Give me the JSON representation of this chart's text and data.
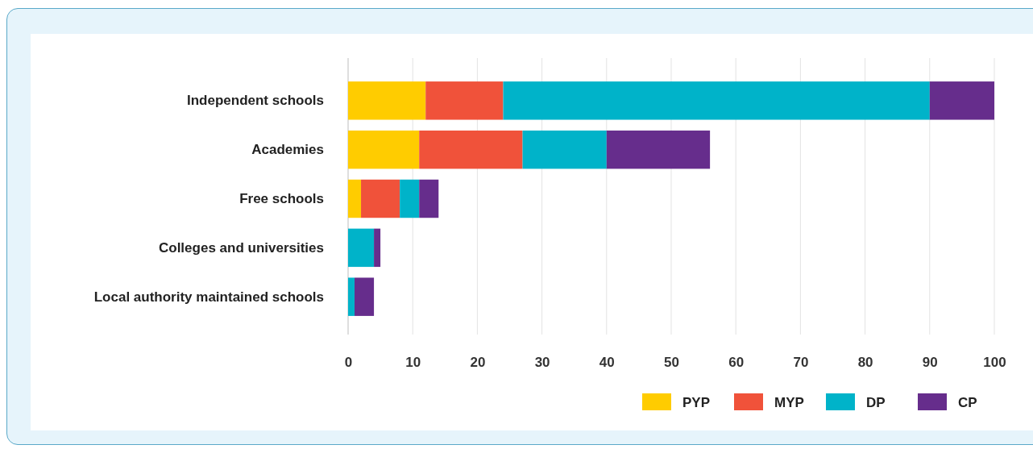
{
  "chart_data": {
    "type": "bar",
    "orientation": "horizontal",
    "stacked": true,
    "categories": [
      "Independent schools",
      "Academies",
      "Free schools",
      "Colleges and universities",
      "Local authority maintained schools"
    ],
    "series": [
      {
        "name": "PYP",
        "color": "#ffcc00",
        "values": [
          12,
          11,
          2,
          0,
          0
        ]
      },
      {
        "name": "MYP",
        "color": "#f0523a",
        "values": [
          12,
          16,
          6,
          0,
          0
        ]
      },
      {
        "name": "DP",
        "color": "#00b3c9",
        "values": [
          66,
          13,
          3,
          4,
          1
        ]
      },
      {
        "name": "CP",
        "color": "#662d8c",
        "values": [
          10,
          16,
          3,
          1,
          3
        ]
      }
    ],
    "xlim": [
      0,
      100
    ],
    "xticks": [
      0,
      10,
      20,
      30,
      40,
      50,
      60,
      70,
      80,
      90,
      100
    ],
    "grid": "x",
    "legend": "bottom right"
  }
}
